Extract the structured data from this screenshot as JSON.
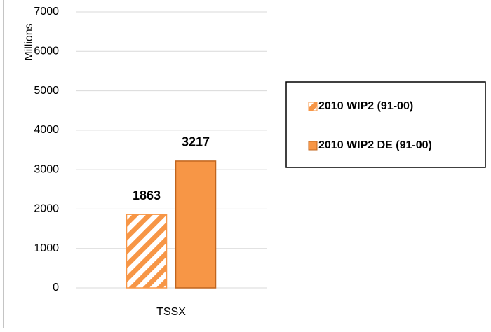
{
  "chart_data": {
    "type": "bar",
    "y_label": "Millions",
    "categories": [
      "TSSX"
    ],
    "series": [
      {
        "name": "2010 WIP2 (91-00)",
        "color": "#f79646",
        "pattern": "diagonal-stripes",
        "values": [
          1863
        ]
      },
      {
        "name": "2010 WIP2 DE (91-00)",
        "color": "#f79646",
        "values": [
          3217
        ]
      }
    ],
    "ylim": [
      0,
      7000
    ],
    "yticks": [
      0,
      1000,
      2000,
      3000,
      4000,
      5000,
      6000,
      7000
    ],
    "grid": true,
    "data_labels": true,
    "legend": "right"
  }
}
